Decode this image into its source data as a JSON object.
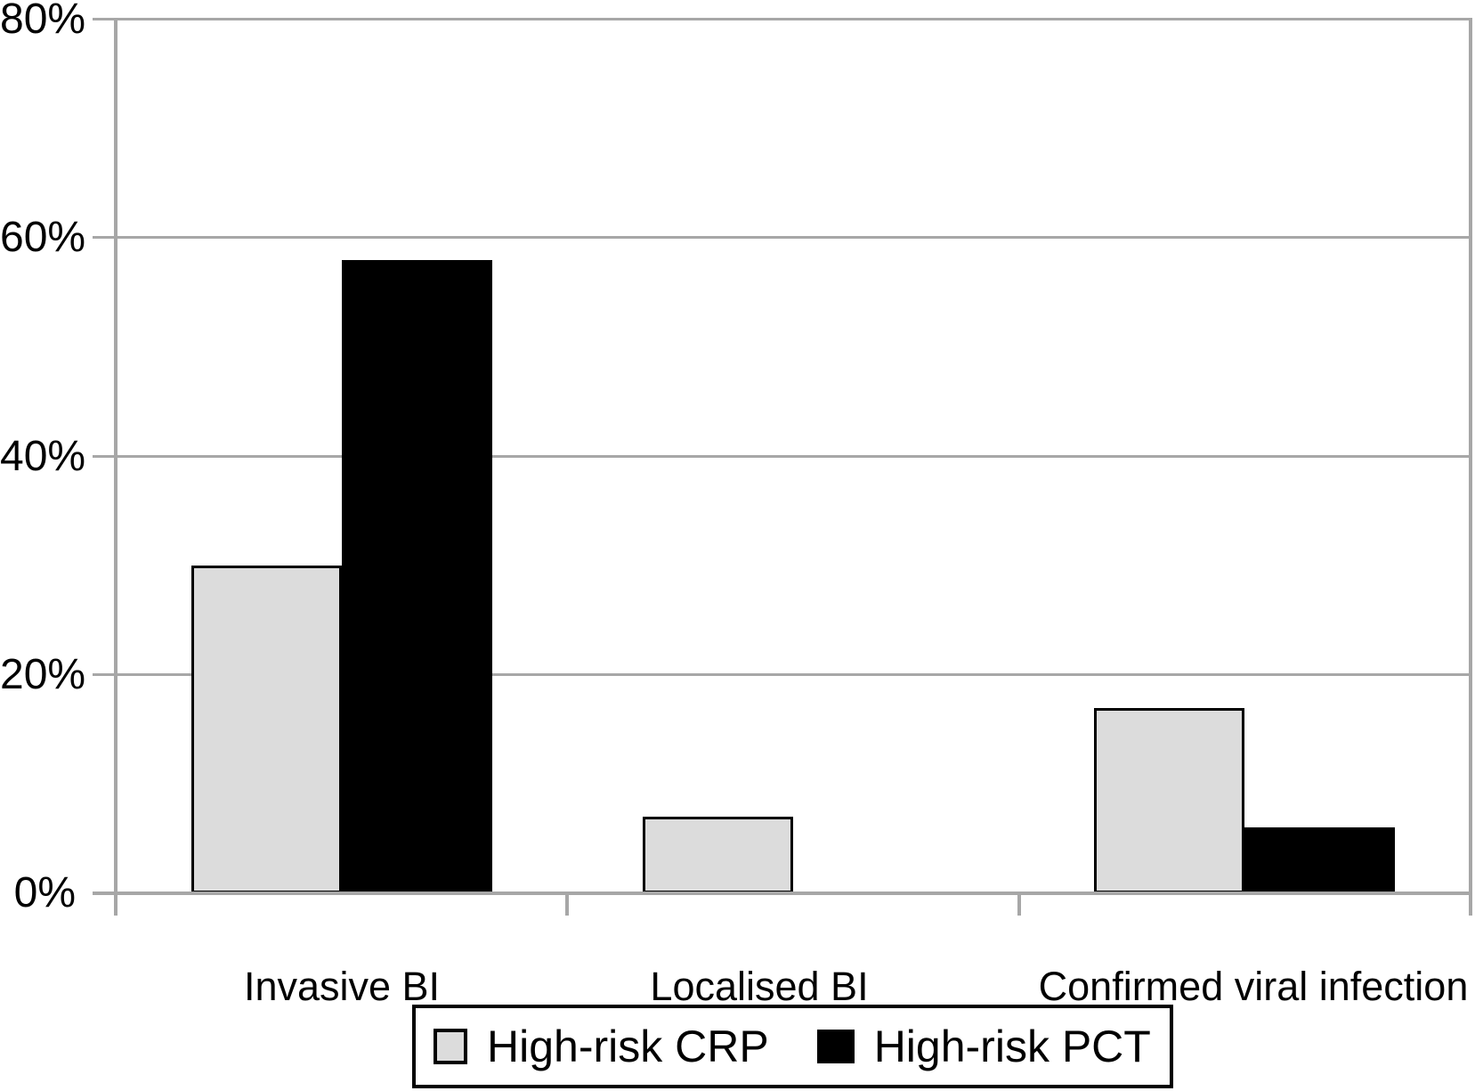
{
  "chart_data": {
    "type": "bar",
    "title": "",
    "xlabel": "",
    "ylabel": "",
    "categories": [
      "Invasive BI",
      "Localised BI",
      "Confirmed viral infection"
    ],
    "series": [
      {
        "name": "High-risk CRP",
        "color": "#dcdcdc",
        "border_color": "#000000",
        "values": [
          30,
          7,
          17
        ]
      },
      {
        "name": "High-risk PCT",
        "color": "#000000",
        "border_color": "#000000",
        "values": [
          58,
          0,
          6
        ]
      }
    ],
    "ylim": [
      0,
      80
    ],
    "y_ticks": [
      0,
      20,
      40,
      60,
      80
    ],
    "y_tick_labels": [
      "0%",
      "20%",
      "40%",
      "60%",
      "80%"
    ],
    "grid": true,
    "legend_position": "bottom",
    "axis_color": "#a7a7a7",
    "background_color": "#ffffff"
  }
}
